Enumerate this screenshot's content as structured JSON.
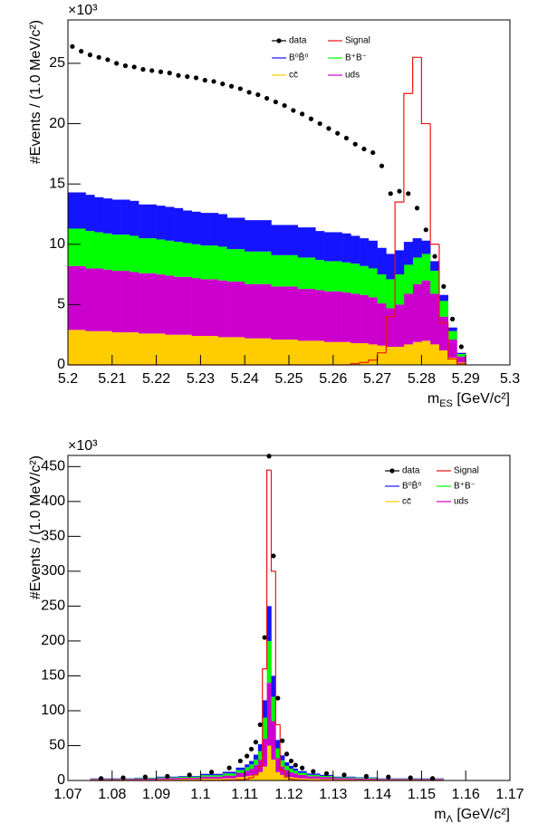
{
  "chart_data": [
    {
      "type": "histogram",
      "stacked": true,
      "y_multiplier": "×10³",
      "ylabel": "#Events / (1.0 MeV/c²)",
      "xlabel": [
        "m",
        "ES",
        " [GeV/c²]"
      ],
      "xlim": [
        5.2,
        5.3
      ],
      "xticks": [
        5.2,
        5.21,
        5.22,
        5.23,
        5.24,
        5.25,
        5.26,
        5.27,
        5.28,
        5.29,
        5.3
      ],
      "ylim": [
        0,
        28.6
      ],
      "yticks": [
        0,
        5,
        10,
        15,
        20,
        25
      ],
      "legend": "upper right",
      "bins": [
        5.2,
        5.202,
        5.204,
        5.206,
        5.208,
        5.21,
        5.212,
        5.214,
        5.216,
        5.218,
        5.22,
        5.222,
        5.224,
        5.226,
        5.228,
        5.23,
        5.232,
        5.234,
        5.236,
        5.238,
        5.24,
        5.242,
        5.244,
        5.246,
        5.248,
        5.25,
        5.252,
        5.254,
        5.256,
        5.258,
        5.26,
        5.262,
        5.264,
        5.266,
        5.268,
        5.27,
        5.272,
        5.274,
        5.276,
        5.278,
        5.28,
        5.282,
        5.284,
        5.286,
        5.288,
        5.29
      ],
      "series": [
        {
          "name": "cc̄",
          "color": "#ffcc00",
          "values": [
            2.9,
            2.9,
            2.8,
            2.8,
            2.8,
            2.7,
            2.7,
            2.7,
            2.6,
            2.6,
            2.6,
            2.5,
            2.5,
            2.5,
            2.4,
            2.4,
            2.4,
            2.3,
            2.3,
            2.3,
            2.2,
            2.2,
            2.2,
            2.1,
            2.1,
            2.1,
            2.0,
            2.0,
            2.0,
            1.9,
            1.9,
            1.9,
            1.8,
            1.8,
            1.7,
            1.6,
            1.5,
            1.5,
            1.7,
            1.9,
            2.0,
            1.7,
            1.2,
            0.6,
            0.2
          ]
        },
        {
          "name": "uds",
          "color": "#cc00cc",
          "values": [
            5.3,
            5.3,
            5.2,
            5.2,
            5.1,
            5.1,
            5.1,
            5.0,
            5.0,
            5.0,
            4.9,
            4.9,
            4.8,
            4.8,
            4.8,
            4.7,
            4.7,
            4.7,
            4.6,
            4.6,
            4.5,
            4.5,
            4.5,
            4.4,
            4.4,
            4.4,
            4.3,
            4.3,
            4.2,
            4.2,
            4.2,
            4.1,
            4.1,
            4.0,
            3.9,
            3.5,
            3.2,
            3.5,
            4.2,
            4.8,
            5.0,
            4.2,
            2.8,
            1.5,
            0.5
          ]
        },
        {
          "name": "B⁺B⁻",
          "color": "#00ff00",
          "values": [
            3.1,
            3.1,
            3.1,
            3.0,
            3.0,
            3.0,
            3.0,
            3.0,
            2.9,
            2.9,
            2.9,
            2.9,
            2.9,
            2.8,
            2.8,
            2.8,
            2.8,
            2.8,
            2.7,
            2.7,
            2.7,
            2.7,
            2.7,
            2.6,
            2.6,
            2.6,
            2.6,
            2.6,
            2.5,
            2.5,
            2.5,
            2.5,
            2.5,
            2.4,
            2.4,
            2.4,
            2.4,
            2.5,
            2.4,
            2.2,
            2.2,
            1.9,
            1.3,
            0.7,
            0.2
          ]
        },
        {
          "name": "B⁰B̄⁰",
          "color": "#1414ff",
          "values": [
            3.0,
            3.0,
            3.0,
            2.9,
            2.9,
            2.9,
            2.9,
            2.9,
            2.8,
            2.8,
            2.8,
            2.8,
            2.8,
            2.7,
            2.7,
            2.7,
            2.7,
            2.7,
            2.6,
            2.6,
            2.6,
            2.6,
            2.6,
            2.5,
            2.5,
            2.5,
            2.5,
            2.5,
            2.4,
            2.4,
            2.4,
            2.4,
            2.3,
            2.3,
            2.3,
            2.2,
            2.1,
            2.0,
            1.9,
            1.6,
            1.1,
            0.8,
            0.5,
            0.3,
            0.1
          ]
        }
      ],
      "data": {
        "name": "data",
        "color": "#000000",
        "values": [
          26.4,
          26.0,
          25.7,
          25.5,
          25.3,
          25.0,
          24.8,
          24.7,
          24.5,
          24.4,
          24.3,
          24.2,
          24.0,
          23.9,
          23.8,
          23.6,
          23.5,
          23.3,
          23.1,
          22.9,
          22.6,
          22.4,
          22.1,
          21.8,
          21.5,
          21.1,
          20.8,
          20.4,
          20.0,
          19.6,
          19.2,
          18.8,
          18.3,
          17.9,
          17.6,
          16.5,
          14.2,
          14.4,
          14.2,
          13.0,
          11.2,
          9.0,
          6.5,
          3.8,
          1.5
        ]
      },
      "signal": {
        "name": "Signal",
        "color": "#ee1111",
        "values": [
          0,
          0,
          0,
          0,
          0,
          0,
          0,
          0,
          0,
          0,
          0,
          0,
          0,
          0,
          0,
          0,
          0,
          0,
          0,
          0,
          0,
          0,
          0,
          0,
          0,
          0,
          0,
          0,
          0,
          0,
          0,
          0,
          0.1,
          0.2,
          0.4,
          1.0,
          4.0,
          13.5,
          22.5,
          25.5,
          20.0,
          10.0,
          3.5,
          0.5,
          0.1
        ]
      }
    },
    {
      "type": "histogram",
      "stacked": true,
      "y_multiplier": "×10³",
      "ylabel": "#Events / (1.0 MeV/c²)",
      "xlabel": [
        "m",
        "Λ",
        " [GeV/c²]"
      ],
      "xlim": [
        1.07,
        1.17
      ],
      "xticks": [
        1.07,
        1.08,
        1.09,
        1.1,
        1.11,
        1.12,
        1.13,
        1.14,
        1.15,
        1.16,
        1.17
      ],
      "ylim": [
        0,
        466
      ],
      "yticks": [
        0,
        50,
        100,
        150,
        200,
        250,
        300,
        350,
        400,
        450
      ],
      "legend": "upper right",
      "bins": [
        1.075,
        1.08,
        1.085,
        1.09,
        1.095,
        1.1,
        1.105,
        1.108,
        1.11,
        1.111,
        1.112,
        1.113,
        1.114,
        1.115,
        1.116,
        1.117,
        1.118,
        1.119,
        1.12,
        1.121,
        1.122,
        1.124,
        1.127,
        1.13,
        1.135,
        1.14,
        1.145,
        1.15,
        1.155
      ],
      "series": [
        {
          "name": "cc̄",
          "color": "#ffcc00",
          "values": [
            1,
            1,
            1,
            1.5,
            2,
            2.5,
            3,
            5,
            6,
            7,
            9,
            12,
            20,
            50,
            30,
            12,
            8,
            6,
            5,
            4,
            3,
            2.5,
            2,
            1.5,
            1.2,
            1,
            1,
            1
          ]
        },
        {
          "name": "uds",
          "color": "#cc00cc",
          "values": [
            1,
            1,
            1.5,
            2,
            2,
            3,
            4,
            6,
            8,
            10,
            13,
            18,
            40,
            90,
            55,
            20,
            12,
            9,
            7,
            6,
            5,
            3.5,
            3,
            2,
            1.5,
            1,
            1,
            1
          ]
        },
        {
          "name": "B⁺B⁻",
          "color": "#00ff00",
          "values": [
            0.5,
            0.5,
            1,
            1,
            1.5,
            2,
            3,
            4,
            5,
            6,
            8,
            12,
            30,
            60,
            35,
            14,
            9,
            6,
            5,
            4,
            3,
            2,
            1.5,
            1,
            1,
            0.5,
            0.5,
            0.5
          ]
        },
        {
          "name": "B⁰B̄⁰",
          "color": "#1414ff",
          "values": [
            0.5,
            0.5,
            0.5,
            1,
            1,
            2,
            2.5,
            3.5,
            4,
            5,
            7,
            10,
            25,
            50,
            30,
            12,
            7,
            5,
            4,
            3,
            2.5,
            2,
            1.5,
            1,
            0.8,
            0.5,
            0.5,
            0.5
          ]
        }
      ],
      "data": {
        "name": "data",
        "color": "#000000",
        "values": [
          3,
          4,
          5,
          6,
          8,
          12,
          18,
          28,
          35,
          45,
          55,
          80,
          205,
          465,
          322,
          118,
          57,
          38,
          28,
          22,
          18,
          13,
          10,
          8,
          6,
          5,
          4,
          3
        ]
      },
      "signal": {
        "name": "Signal",
        "color": "#ee1111",
        "values": [
          0,
          0,
          0,
          0,
          0,
          0,
          0.5,
          1,
          2,
          4,
          8,
          20,
          160,
          445,
          300,
          80,
          15,
          5,
          2,
          1,
          0.5,
          0,
          0,
          0,
          0,
          0,
          0,
          0
        ]
      }
    }
  ]
}
